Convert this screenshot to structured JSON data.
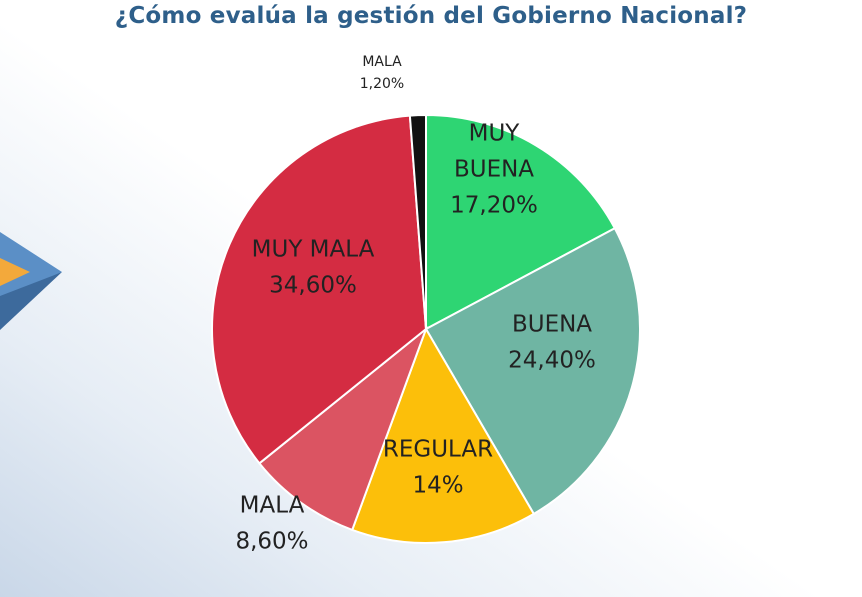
{
  "chart_data": {
    "type": "pie",
    "title": "¿Cómo evalúa la gestión del Gobierno Nacional?",
    "start_angle_deg": 0,
    "direction": "clockwise",
    "slices": [
      {
        "label_lines": [
          "MUY",
          "BUENA"
        ],
        "value_label": "17,20%",
        "value": 17.2,
        "color": "#2ed573"
      },
      {
        "label_lines": [
          "BUENA"
        ],
        "value_label": "24,40%",
        "value": 24.4,
        "color": "#6fb5a3"
      },
      {
        "label_lines": [
          "REGULAR"
        ],
        "value_label": "14%",
        "value": 14.0,
        "color": "#fcbf0a"
      },
      {
        "label_lines": [
          "MALA"
        ],
        "value_label": "8,60%",
        "value": 8.6,
        "color": "#db5462"
      },
      {
        "label_lines": [
          "MUY MALA"
        ],
        "value_label": "34,60%",
        "value": 34.6,
        "color": "#d42c42"
      },
      {
        "label_lines": [
          "MALA"
        ],
        "value_label": "1,20%",
        "value": 1.2,
        "color": "#111111"
      }
    ]
  }
}
